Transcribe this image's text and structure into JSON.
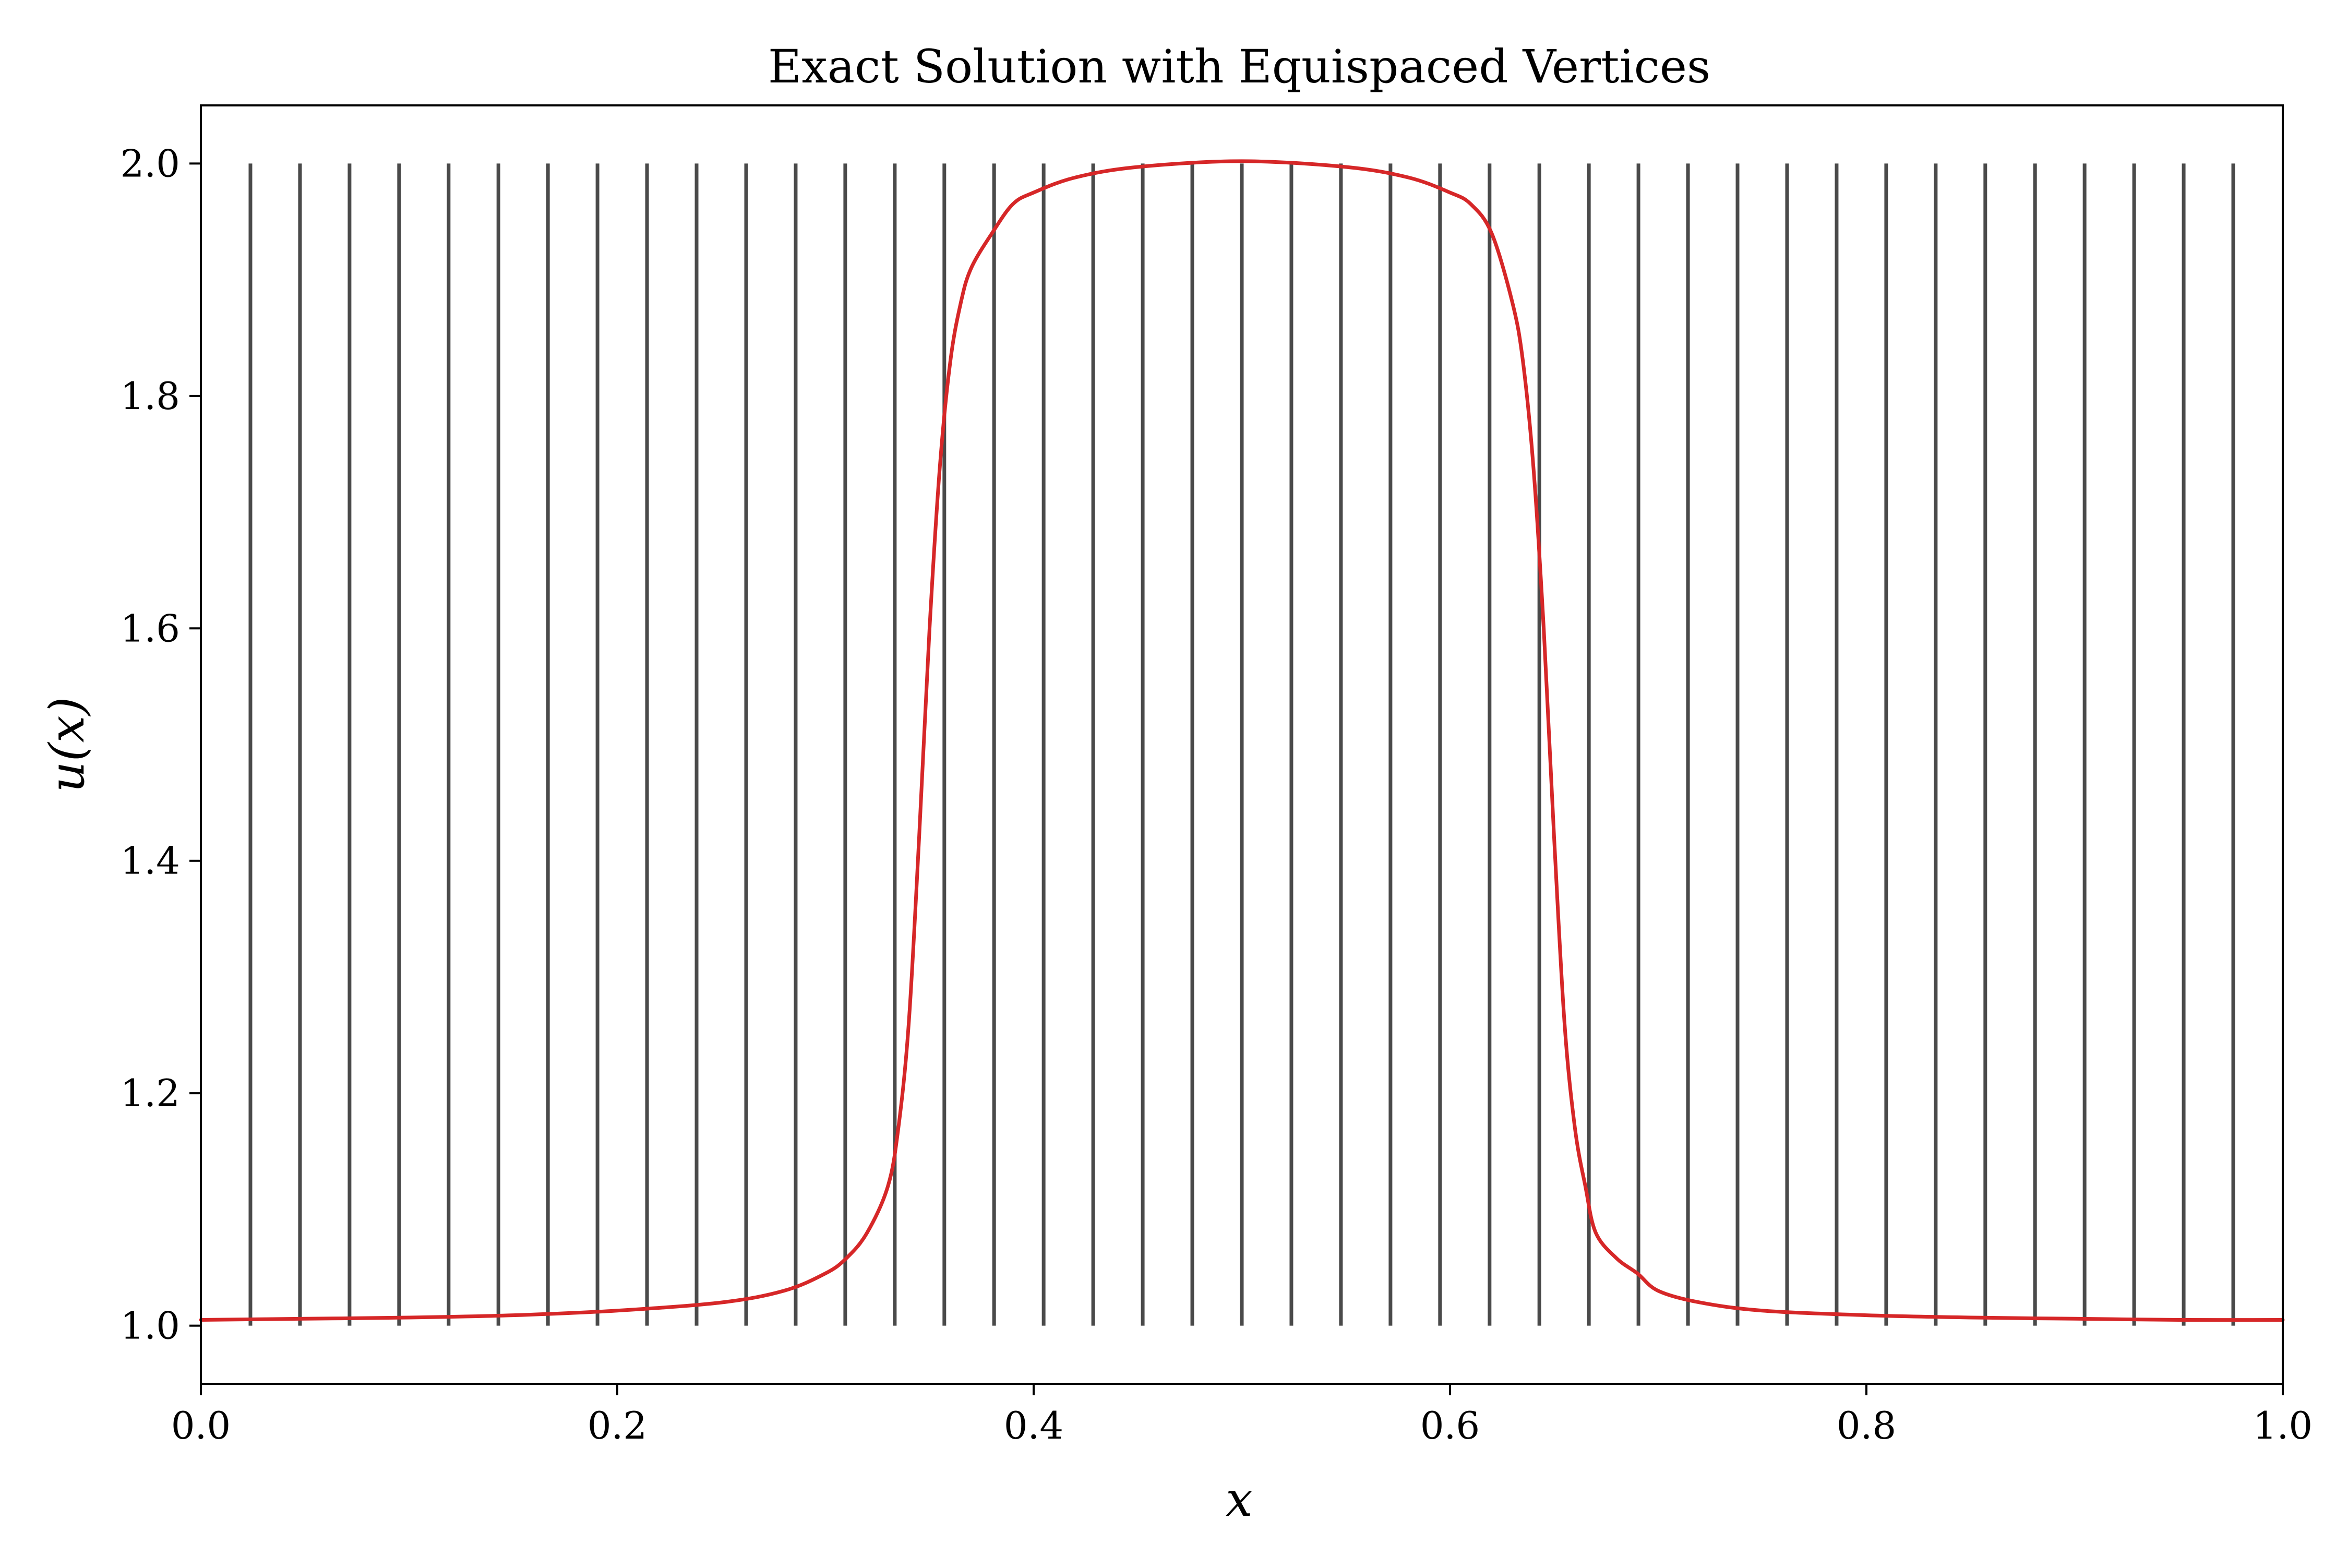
{
  "chart_data": {
    "type": "line",
    "title": "Exact Solution with Equispaced Vertices",
    "xlabel": "x",
    "ylabel": "u(x)",
    "xlim": [
      0.0,
      1.0
    ],
    "ylim": [
      0.95,
      2.05
    ],
    "xticks": [
      "0.0",
      "0.2",
      "0.4",
      "0.6",
      "0.8",
      "1.0"
    ],
    "yticks": [
      "1.0",
      "1.2",
      "1.4",
      "1.6",
      "1.8",
      "2.0"
    ],
    "grid": false,
    "legend": "none",
    "series": [
      {
        "kind": "curve",
        "color": "#d62728",
        "x": [
          0.0,
          0.05,
          0.1,
          0.15,
          0.2,
          0.25,
          0.28,
          0.3,
          0.31,
          0.32,
          0.33,
          0.335,
          0.34,
          0.345,
          0.35,
          0.355,
          0.36,
          0.365,
          0.37,
          0.38,
          0.39,
          0.4,
          0.42,
          0.45,
          0.5,
          0.55,
          0.58,
          0.6,
          0.61,
          0.62,
          0.63,
          0.635,
          0.64,
          0.645,
          0.65,
          0.655,
          0.66,
          0.665,
          0.67,
          0.68,
          0.69,
          0.7,
          0.72,
          0.75,
          0.8,
          0.85,
          0.9,
          0.95,
          1.0
        ],
        "y": [
          1.005,
          1.006,
          1.007,
          1.009,
          1.013,
          1.02,
          1.03,
          1.045,
          1.058,
          1.08,
          1.12,
          1.17,
          1.26,
          1.42,
          1.6,
          1.74,
          1.83,
          1.88,
          1.91,
          1.94,
          1.965,
          1.975,
          1.988,
          1.997,
          2.002,
          1.997,
          1.988,
          1.975,
          1.965,
          1.94,
          1.88,
          1.83,
          1.74,
          1.6,
          1.42,
          1.26,
          1.17,
          1.12,
          1.08,
          1.058,
          1.045,
          1.03,
          1.02,
          1.013,
          1.009,
          1.007,
          1.006,
          1.005,
          1.005
        ]
      },
      {
        "kind": "vertices",
        "color": "#4a4a4a",
        "y_range": [
          1.0,
          2.0
        ],
        "x": [
          0.0238,
          0.0476,
          0.0714,
          0.0952,
          0.119,
          0.1429,
          0.1667,
          0.1905,
          0.2143,
          0.2381,
          0.2619,
          0.2857,
          0.3095,
          0.3333,
          0.3571,
          0.381,
          0.4048,
          0.4286,
          0.4524,
          0.4762,
          0.5,
          0.5238,
          0.5476,
          0.5714,
          0.5952,
          0.619,
          0.6429,
          0.6667,
          0.6905,
          0.7143,
          0.7381,
          0.7619,
          0.7857,
          0.8095,
          0.8333,
          0.8571,
          0.881,
          0.9048,
          0.9286,
          0.9524,
          0.9762
        ]
      }
    ]
  }
}
